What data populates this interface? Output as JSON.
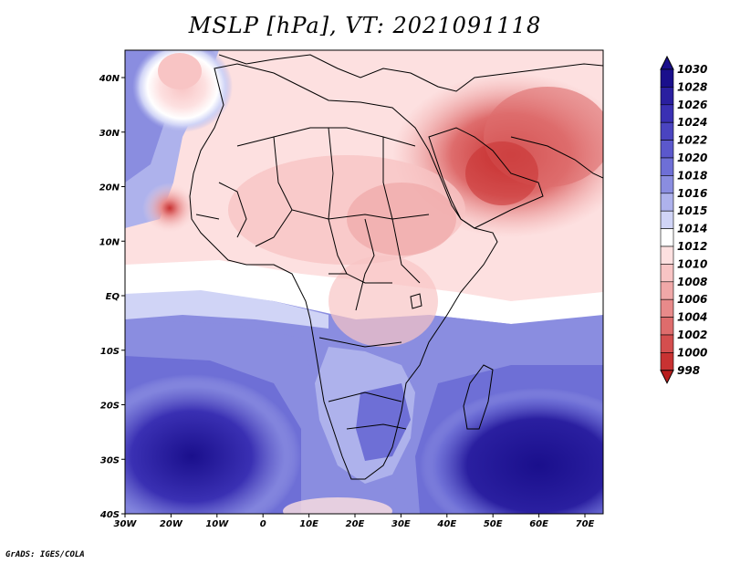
{
  "title": "MSLP [hPa], VT: 2021091118",
  "credit": "GrADS: IGES/COLA",
  "map": {
    "lon_ticks": [
      "30W",
      "20W",
      "10W",
      "0",
      "10E",
      "20E",
      "30E",
      "40E",
      "50E",
      "60E",
      "70E"
    ],
    "lat_ticks": [
      "40N",
      "30N",
      "20N",
      "10N",
      "EQ",
      "10S",
      "20S",
      "30S",
      "40S"
    ]
  },
  "colorbar": {
    "levels": [
      "1030",
      "1028",
      "1026",
      "1024",
      "1022",
      "1020",
      "1018",
      "1016",
      "1015",
      "1014",
      "1012",
      "1010",
      "1008",
      "1006",
      "1004",
      "1002",
      "1000",
      "998"
    ],
    "colors": [
      "#1a0f8c",
      "#2a1fa0",
      "#3a30b3",
      "#4a44c0",
      "#5b58cc",
      "#6e6fd6",
      "#8a8de0",
      "#aeb2ec",
      "#d0d4f6",
      "#ffffff",
      "#fde0e0",
      "#f8c4c4",
      "#f0a8a8",
      "#e88a8a",
      "#de6c6c",
      "#d44e4e",
      "#c83232",
      "#b81e1e"
    ],
    "accent_low": "#b81e1e",
    "accent_high": "#1a0f8c"
  }
}
